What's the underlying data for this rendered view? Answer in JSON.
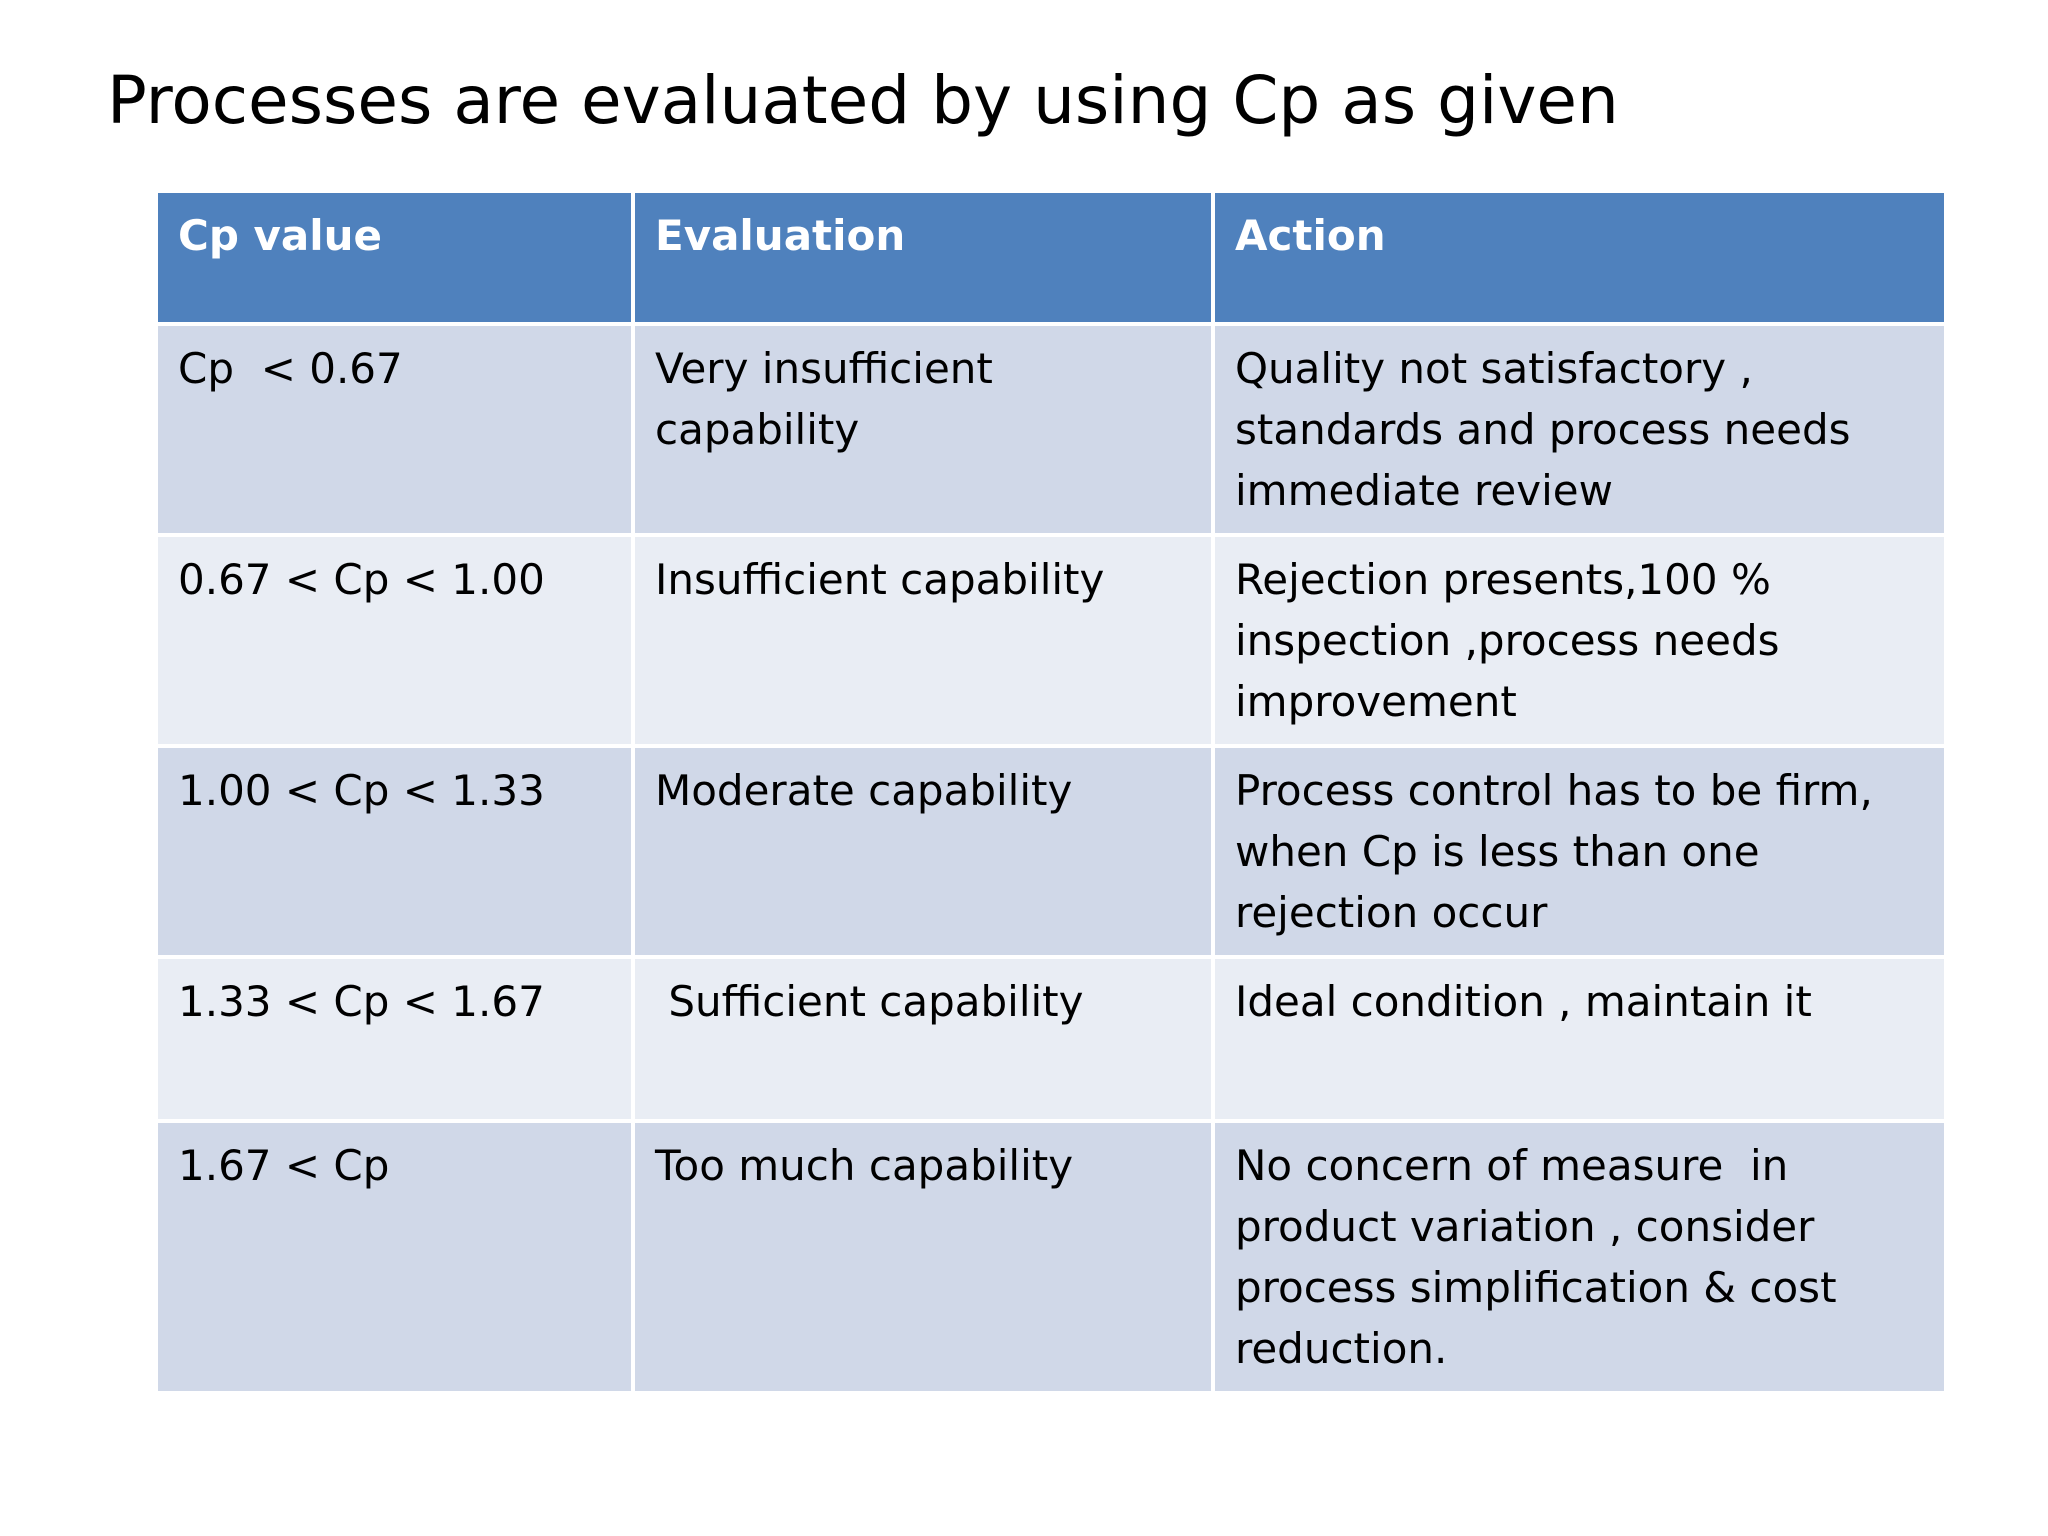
{
  "header": {
    "title": "Processes are evaluated by using Cp as given"
  },
  "table": {
    "columns": [
      "Cp value",
      "Evaluation",
      "Action"
    ],
    "rows": [
      [
        "Cp  < 0.67",
        "Very insufficient capability",
        "Quality not satisfactory , standards and process needs immediate review"
      ],
      [
        "0.67 < Cp < 1.00",
        "Insufficient capability",
        "Rejection presents,100 % inspection ,process needs improvement"
      ],
      [
        "1.00 < Cp < 1.33",
        "Moderate capability",
        "Process control has to be firm, when Cp is less than one rejection occur"
      ],
      [
        "1.33 < Cp < 1.67",
        " Sufficient capability",
        "Ideal condition , maintain it"
      ],
      [
        "1.67 < Cp",
        "Too much capability",
        "No concern of measure  in product variation , consider process simplification & cost reduction."
      ]
    ]
  }
}
